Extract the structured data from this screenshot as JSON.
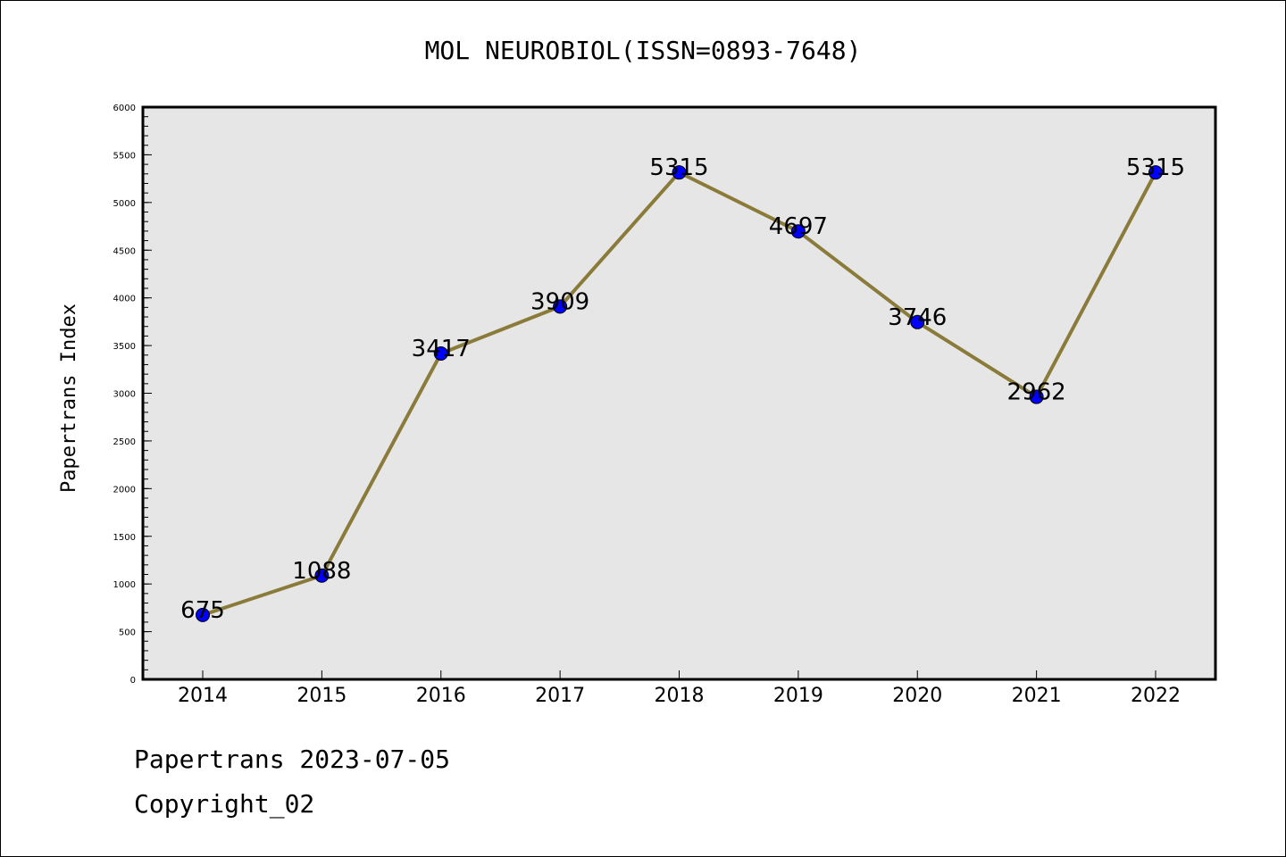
{
  "chart_data": {
    "type": "line",
    "title": "MOL NEUROBIOL(ISSN=0893-7648)",
    "xlabel": "",
    "ylabel": "Papertrans Index",
    "categories": [
      "2014",
      "2015",
      "2016",
      "2017",
      "2018",
      "2019",
      "2020",
      "2021",
      "2022"
    ],
    "values": [
      675,
      1088,
      3417,
      3909,
      5315,
      4697,
      3746,
      2962,
      5315
    ],
    "data_labels": [
      "675",
      "1088",
      "3417",
      "3909",
      "5315",
      "4697",
      "3746",
      "2962",
      "5315"
    ],
    "ylim": [
      0,
      6000
    ],
    "yticks": [
      "0",
      "500",
      "1000",
      "1500",
      "2000",
      "2500",
      "3000",
      "3500",
      "4000",
      "4500",
      "5000",
      "5500",
      "6000"
    ],
    "grid": false,
    "legend": "none",
    "colors": {
      "line": "#8b7b3a",
      "marker": "#0000ff",
      "plot_bg": "#e6e6e6"
    }
  },
  "footer": {
    "line1": "Papertrans 2023-07-05",
    "line2": "Copyright_02"
  }
}
